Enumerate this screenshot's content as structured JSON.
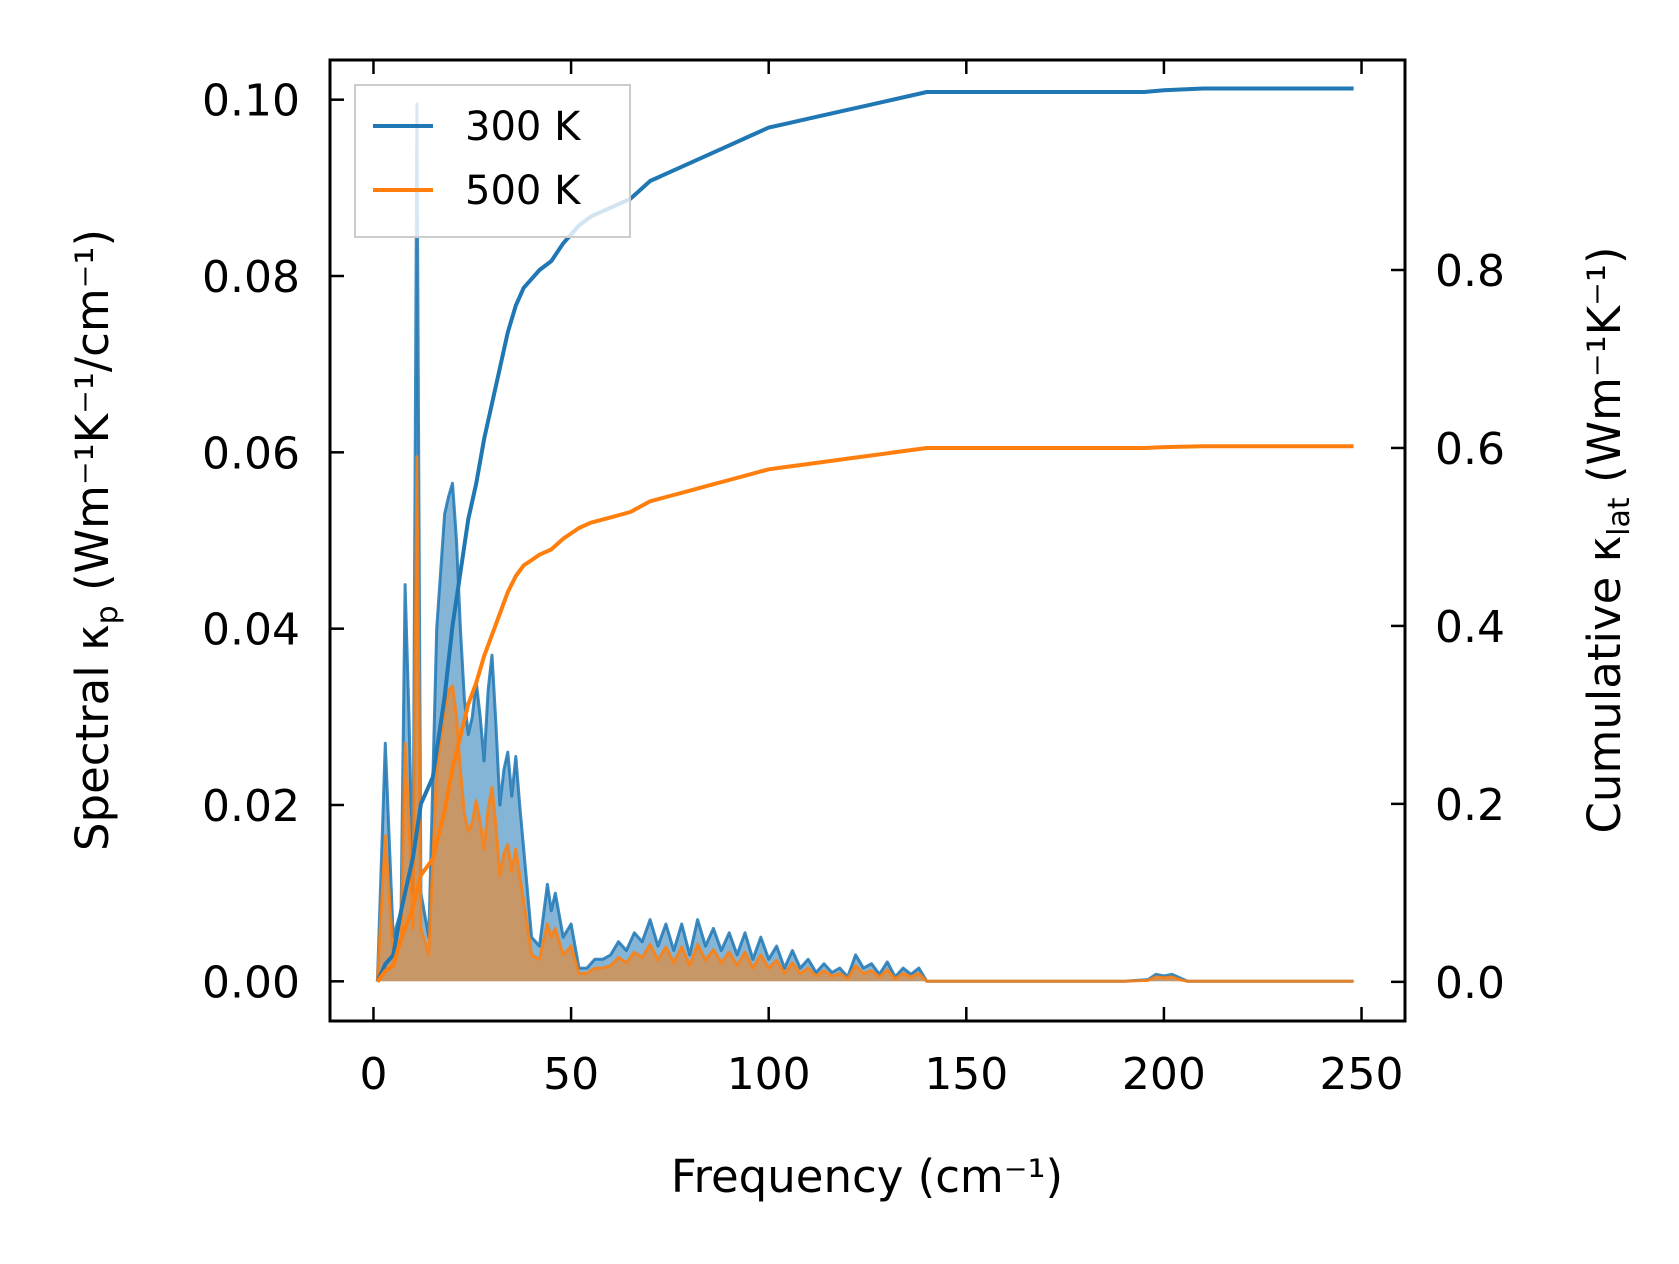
{
  "chart_data": {
    "type": "line",
    "xlabel": "Frequency (cm⁻¹)",
    "ylabel_left": {
      "main": "Spectral κ",
      "sub": "p",
      "rest": " (Wm⁻¹K⁻¹/cm⁻¹)"
    },
    "ylabel_right": {
      "main": "Cumulative κ",
      "sub": "lat",
      "rest": " (Wm⁻¹K⁻¹)"
    },
    "xlim": [
      -11,
      261
    ],
    "ylim_left": [
      -0.0045,
      0.1045
    ],
    "ylim_right": [
      -0.044,
      1.036
    ],
    "x_ticks": [
      0,
      50,
      100,
      150,
      200,
      250
    ],
    "x_tick_labels": [
      "0",
      "50",
      "100",
      "150",
      "200",
      "250"
    ],
    "y_left_ticks": [
      0.0,
      0.02,
      0.04,
      0.06,
      0.08,
      0.1
    ],
    "y_left_tick_labels": [
      "0.00",
      "0.02",
      "0.04",
      "0.06",
      "0.08",
      "0.10"
    ],
    "y_right_ticks": [
      0.0,
      0.2,
      0.4,
      0.6,
      0.8
    ],
    "y_right_tick_labels": [
      "0.0",
      "0.2",
      "0.4",
      "0.6",
      "0.8"
    ],
    "legend": {
      "placement": "top-left",
      "entries": [
        "300 K",
        "500 K"
      ]
    },
    "grid": false,
    "series": [
      {
        "name": "300 K",
        "color": "#1f77b4",
        "spectral": {
          "x": [
            1,
            3,
            5,
            7,
            8,
            9,
            10,
            11,
            12,
            14,
            16,
            18,
            19,
            20,
            21,
            22,
            23,
            24,
            25,
            26,
            27,
            28,
            29,
            30,
            31,
            32,
            33,
            34,
            35,
            36,
            37,
            38,
            40,
            42,
            44,
            45,
            46,
            48,
            50,
            52,
            54,
            56,
            58,
            60,
            62,
            64,
            66,
            68,
            70,
            72,
            74,
            76,
            78,
            80,
            82,
            84,
            86,
            88,
            90,
            92,
            94,
            96,
            98,
            100,
            102,
            104,
            106,
            108,
            110,
            112,
            114,
            116,
            118,
            120,
            122,
            124,
            126,
            128,
            130,
            132,
            134,
            136,
            138,
            140,
            150,
            160,
            170,
            180,
            190,
            196,
            198,
            200,
            202,
            204,
            206,
            208,
            210,
            220,
            230,
            240,
            248
          ],
          "y": [
            0,
            0.027,
            0.005,
            0.008,
            0.045,
            0.03,
            0.01,
            0.0995,
            0.01,
            0.005,
            0.04,
            0.053,
            0.055,
            0.0565,
            0.05,
            0.04,
            0.032,
            0.028,
            0.03,
            0.034,
            0.03,
            0.025,
            0.033,
            0.037,
            0.029,
            0.02,
            0.024,
            0.026,
            0.021,
            0.0255,
            0.02,
            0.015,
            0.005,
            0.004,
            0.011,
            0.008,
            0.01,
            0.005,
            0.0065,
            0.0015,
            0.0015,
            0.0025,
            0.0025,
            0.003,
            0.0045,
            0.0035,
            0.0055,
            0.0045,
            0.007,
            0.004,
            0.0065,
            0.0035,
            0.0065,
            0.003,
            0.007,
            0.004,
            0.006,
            0.0035,
            0.0055,
            0.003,
            0.0055,
            0.0025,
            0.005,
            0.0025,
            0.004,
            0.0015,
            0.0035,
            0.0015,
            0.0025,
            0.001,
            0.002,
            0.001,
            0.0015,
            0.0005,
            0.003,
            0.0015,
            0.002,
            0.0008,
            0.0022,
            0.0005,
            0.0015,
            0.0008,
            0.0015,
            0,
            0,
            0,
            0,
            0,
            0,
            0.0002,
            0.0008,
            0.0006,
            0.0008,
            0.0004,
            0,
            0,
            0,
            0,
            0,
            0,
            0
          ]
        },
        "cumulative": {
          "x": [
            1,
            3,
            5,
            7,
            10,
            12,
            15,
            18,
            20,
            22,
            24,
            26,
            28,
            30,
            32,
            34,
            36,
            38,
            40,
            42,
            45,
            48,
            50,
            52,
            55,
            60,
            65,
            70,
            75,
            80,
            85,
            90,
            95,
            100,
            105,
            110,
            120,
            125,
            130,
            135,
            140,
            150,
            160,
            170,
            180,
            190,
            195,
            200,
            210,
            220,
            230,
            240,
            248
          ],
          "y": [
            0,
            0.02,
            0.03,
            0.08,
            0.14,
            0.2,
            0.23,
            0.32,
            0.4,
            0.46,
            0.52,
            0.56,
            0.61,
            0.65,
            0.69,
            0.73,
            0.76,
            0.78,
            0.79,
            0.8,
            0.81,
            0.83,
            0.84,
            0.85,
            0.86,
            0.87,
            0.88,
            0.9,
            0.91,
            0.92,
            0.93,
            0.94,
            0.95,
            0.96,
            0.965,
            0.97,
            0.98,
            0.985,
            0.99,
            0.995,
            1.0,
            1.0,
            1.0,
            1.0,
            1.0,
            1.0,
            1.0,
            1.002,
            1.004,
            1.004,
            1.004,
            1.004,
            1.004
          ]
        }
      },
      {
        "name": "500 K",
        "color": "#ff7f0e",
        "spectral": {
          "x": [
            1,
            3,
            5,
            7,
            8,
            9,
            10,
            11,
            12,
            14,
            16,
            18,
            19,
            20,
            21,
            22,
            23,
            24,
            25,
            26,
            27,
            28,
            29,
            30,
            31,
            32,
            33,
            34,
            35,
            36,
            37,
            38,
            40,
            42,
            44,
            45,
            46,
            48,
            50,
            52,
            54,
            56,
            58,
            60,
            62,
            64,
            66,
            68,
            70,
            72,
            74,
            76,
            78,
            80,
            82,
            84,
            86,
            88,
            90,
            92,
            94,
            96,
            98,
            100,
            102,
            104,
            106,
            108,
            110,
            112,
            114,
            116,
            118,
            120,
            122,
            124,
            126,
            128,
            130,
            132,
            134,
            136,
            138,
            140,
            150,
            160,
            170,
            180,
            190,
            196,
            198,
            200,
            202,
            204,
            206,
            208,
            210,
            220,
            230,
            240,
            248
          ],
          "y": [
            0,
            0.0165,
            0.003,
            0.005,
            0.027,
            0.018,
            0.006,
            0.0595,
            0.006,
            0.003,
            0.024,
            0.031,
            0.033,
            0.0335,
            0.03,
            0.024,
            0.019,
            0.017,
            0.018,
            0.0205,
            0.018,
            0.015,
            0.0195,
            0.022,
            0.0175,
            0.012,
            0.0145,
            0.0155,
            0.0125,
            0.015,
            0.012,
            0.009,
            0.003,
            0.0025,
            0.0065,
            0.005,
            0.006,
            0.003,
            0.004,
            0.0009,
            0.0009,
            0.0015,
            0.0015,
            0.0018,
            0.0027,
            0.0021,
            0.0033,
            0.0027,
            0.0042,
            0.0024,
            0.0039,
            0.0021,
            0.0039,
            0.0018,
            0.0042,
            0.0024,
            0.0036,
            0.0021,
            0.0033,
            0.0018,
            0.0033,
            0.0015,
            0.003,
            0.0015,
            0.0024,
            0.0009,
            0.0021,
            0.0009,
            0.0015,
            0.0006,
            0.0012,
            0.0006,
            0.0009,
            0.0003,
            0.0018,
            0.0009,
            0.0012,
            0.0005,
            0.0013,
            0.0003,
            0.0009,
            0.0005,
            0.0009,
            0,
            0,
            0,
            0,
            0,
            0,
            0.0001,
            0.0005,
            0.0004,
            0.0005,
            0.0002,
            0,
            0,
            0,
            0,
            0,
            0,
            0
          ]
        },
        "cumulative": {
          "x": [
            1,
            3,
            5,
            7,
            10,
            12,
            15,
            18,
            20,
            22,
            24,
            26,
            28,
            30,
            32,
            34,
            36,
            38,
            40,
            42,
            45,
            48,
            50,
            52,
            55,
            60,
            65,
            70,
            75,
            80,
            85,
            90,
            95,
            100,
            105,
            110,
            120,
            125,
            130,
            135,
            140,
            150,
            160,
            170,
            180,
            190,
            195,
            200,
            210,
            220,
            230,
            240,
            248
          ],
          "y": [
            0,
            0.012,
            0.018,
            0.048,
            0.084,
            0.12,
            0.138,
            0.192,
            0.24,
            0.276,
            0.312,
            0.336,
            0.366,
            0.39,
            0.414,
            0.438,
            0.456,
            0.468,
            0.474,
            0.48,
            0.486,
            0.498,
            0.504,
            0.51,
            0.516,
            0.522,
            0.528,
            0.54,
            0.546,
            0.552,
            0.558,
            0.564,
            0.57,
            0.576,
            0.579,
            0.582,
            0.588,
            0.591,
            0.594,
            0.597,
            0.6,
            0.6,
            0.6,
            0.6,
            0.6,
            0.6,
            0.6,
            0.601,
            0.602,
            0.602,
            0.602,
            0.602,
            0.602
          ]
        }
      }
    ]
  }
}
